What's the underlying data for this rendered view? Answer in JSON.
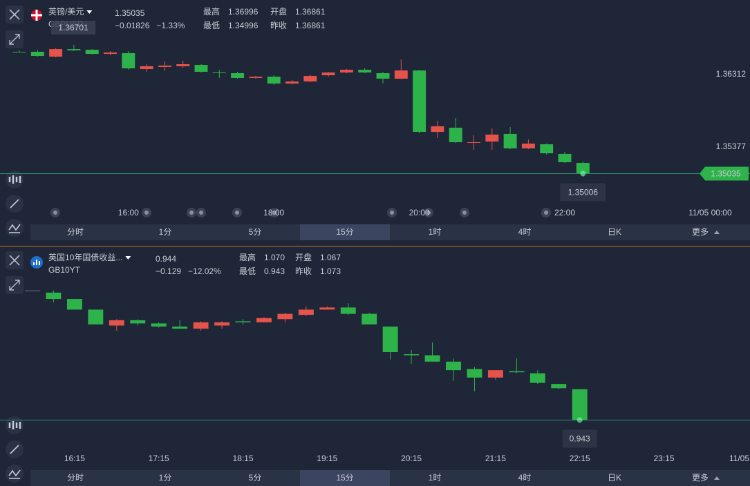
{
  "panels": [
    {
      "name": "英镑/美元",
      "code": "GBPUSD",
      "price": "1.35035",
      "change": "−0.01826",
      "change_pct": "−1.33%",
      "stats": [
        {
          "label": "最高",
          "value": "1.36996",
          "color": "#e8534a"
        },
        {
          "label": "开盘",
          "value": "1.36861",
          "color": "#ffffff"
        },
        {
          "label": "最低",
          "value": "1.34996",
          "color": "#3dc06c"
        },
        {
          "label": "昨收",
          "value": "1.36861",
          "color": "#ffffff"
        }
      ],
      "crosshair_label": "1.36701",
      "cursor_label": "1.35006",
      "chart": {
        "type": "candlestick",
        "ylim": [
          1.34603,
          1.36784
        ],
        "yticks": [
          1.36312,
          1.35377
        ],
        "price_tag": true,
        "open": [
          1.36606,
          1.36606,
          1.36543,
          1.36641,
          1.36632,
          1.36579,
          1.36588,
          1.36383,
          1.3641,
          1.36419,
          1.36437,
          1.36339,
          1.3633,
          1.36268,
          1.36285,
          1.36196,
          1.36223,
          1.36303,
          1.36339,
          1.36374,
          1.3633,
          1.36259,
          1.36365,
          1.35573,
          1.35627,
          1.35431,
          1.35449,
          1.35547,
          1.3536,
          1.35413,
          1.35289,
          1.35173
        ],
        "high": [
          1.36624,
          1.36632,
          1.3665,
          1.36695,
          1.36641,
          1.36615,
          1.36615,
          1.36446,
          1.36481,
          1.3649,
          1.36446,
          1.36374,
          1.36348,
          1.36294,
          1.36303,
          1.36241,
          1.36312,
          1.36348,
          1.36383,
          1.36392,
          1.36348,
          1.36508,
          1.36374,
          1.35716,
          1.35751,
          1.35529,
          1.35618,
          1.35636,
          1.35475,
          1.35422,
          1.35315,
          1.35191
        ],
        "low": [
          1.36597,
          1.36543,
          1.36535,
          1.36615,
          1.3657,
          1.36561,
          1.36374,
          1.36348,
          1.36357,
          1.36401,
          1.36339,
          1.36268,
          1.36259,
          1.36259,
          1.36179,
          1.36187,
          1.36214,
          1.36285,
          1.3633,
          1.3633,
          1.36196,
          1.3625,
          1.35556,
          1.35493,
          1.35431,
          1.35342,
          1.35342,
          1.35351,
          1.35351,
          1.3528,
          1.35173,
          1.34996
        ],
        "close": [
          1.36597,
          1.36552,
          1.36641,
          1.36624,
          1.36579,
          1.36597,
          1.36392,
          1.36419,
          1.36428,
          1.36446,
          1.36348,
          1.3633,
          1.36268,
          1.36285,
          1.36196,
          1.36223,
          1.36294,
          1.36339,
          1.36374,
          1.36339,
          1.36259,
          1.36365,
          1.35573,
          1.35645,
          1.3544,
          1.3544,
          1.35538,
          1.3536,
          1.35422,
          1.35297,
          1.35182,
          1.35035
        ],
        "x_labels": [
          {
            "index": 6,
            "label": "16:00"
          },
          {
            "index": 14,
            "label": "18:00"
          },
          {
            "index": 22,
            "label": "20:00"
          },
          {
            "index": 30,
            "label": "22:00"
          },
          {
            "index": 38,
            "label": "11/05 00:00"
          }
        ]
      }
    },
    {
      "name": "英国10年国债收益...",
      "code": "GB10YT",
      "price": "0.944",
      "change": "−0.129",
      "change_pct": "−12.02%",
      "stats": [
        {
          "label": "最高",
          "value": "1.070",
          "color": "#3dc06c"
        },
        {
          "label": "开盘",
          "value": "1.067",
          "color": "#3dc06c"
        },
        {
          "label": "最低",
          "value": "0.943",
          "color": "#3dc06c"
        },
        {
          "label": "昨收",
          "value": "1.073",
          "color": "#ffffff"
        }
      ],
      "cursor_label": "0.943",
      "chart": {
        "type": "candlestick",
        "ylim": [
          0.916,
          1.072
        ],
        "yticks": [],
        "price_tag": false,
        "open": [
          1.065,
          1.063,
          1.057,
          1.047,
          1.032,
          1.037,
          1.034,
          1.031,
          1.029,
          1.032,
          1.036,
          1.035,
          1.038,
          1.042,
          1.047,
          1.049,
          1.043,
          1.031,
          1.005,
          1.004,
          0.998,
          0.991,
          0.983,
          0.989,
          0.987,
          0.977,
          0.972
        ],
        "high": [
          1.065,
          1.065,
          1.057,
          1.047,
          1.038,
          1.038,
          1.035,
          1.037,
          1.036,
          1.036,
          1.038,
          1.04,
          1.044,
          1.05,
          1.05,
          1.053,
          1.044,
          1.031,
          1.009,
          1.016,
          1.001,
          0.993,
          0.99,
          1.001,
          0.99,
          0.977,
          0.972
        ],
        "low": [
          1.065,
          1.054,
          1.047,
          1.033,
          1.027,
          1.032,
          1.03,
          1.029,
          1.027,
          1.029,
          1.033,
          1.035,
          1.035,
          1.041,
          1.047,
          1.042,
          1.033,
          1.0,
          0.996,
          0.998,
          0.98,
          0.97,
          0.981,
          0.987,
          0.977,
          0.972,
          0.943
        ],
        "close": [
          1.065,
          1.057,
          1.047,
          1.033,
          1.037,
          1.034,
          1.031,
          1.029,
          1.035,
          1.035,
          1.035,
          1.039,
          1.043,
          1.047,
          1.049,
          1.043,
          1.033,
          1.007,
          1.004,
          0.998,
          0.99,
          0.983,
          0.99,
          0.988,
          0.978,
          0.973,
          0.943
        ],
        "x_labels": [
          {
            "index": 2,
            "label": "16:15"
          },
          {
            "index": 6,
            "label": "17:15"
          },
          {
            "index": 10,
            "label": "18:15"
          },
          {
            "index": 14,
            "label": "19:15"
          },
          {
            "index": 18,
            "label": "20:15"
          },
          {
            "index": 22,
            "label": "21:15"
          },
          {
            "index": 26,
            "label": "22:15"
          },
          {
            "index": 30,
            "label": "23:15"
          },
          {
            "index": 34,
            "label": "11/05"
          }
        ]
      }
    }
  ],
  "tabs": [
    "分时",
    "1分",
    "5分",
    "15分",
    "1时",
    "4时",
    "日K",
    "更多"
  ],
  "active_tab": 3
}
